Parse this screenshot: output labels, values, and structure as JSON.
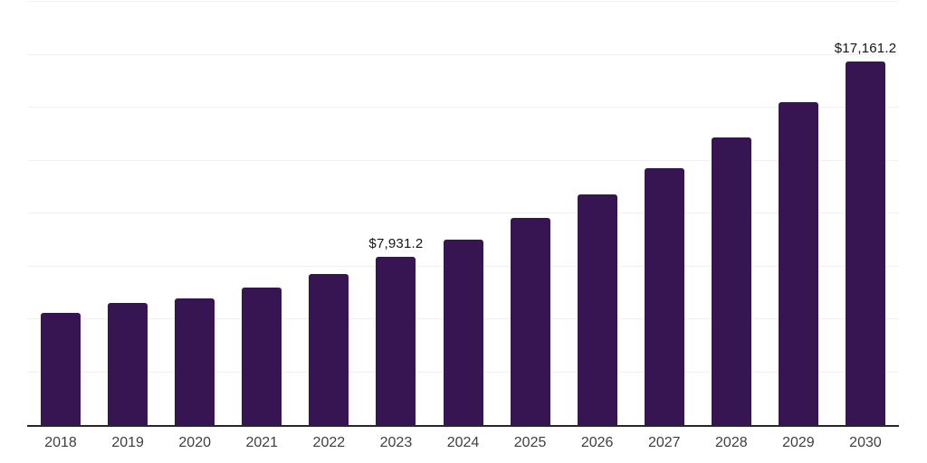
{
  "chart_data": {
    "type": "bar",
    "title": "",
    "xlabel": "",
    "ylabel": "",
    "categories": [
      "2018",
      "2019",
      "2020",
      "2021",
      "2022",
      "2023",
      "2024",
      "2025",
      "2026",
      "2027",
      "2028",
      "2029",
      "2030"
    ],
    "values": [
      5300,
      5750,
      6000,
      6500,
      7150,
      7931.2,
      8750,
      9800,
      10900,
      12150,
      13600,
      15250,
      17161.2
    ],
    "data_labels": [
      "",
      "",
      "",
      "",
      "",
      "$7,931.2",
      "",
      "",
      "",
      "",
      "",
      "",
      "$17,161.2"
    ],
    "ylim": [
      0,
      20000
    ],
    "grid_interval": 2500,
    "grid": "horizontal",
    "legend_position": "none",
    "y_axis_labels_visible": false
  },
  "colors": {
    "bar": "#371553",
    "axis_line": "#26262e",
    "gridline": "#f1f1f4",
    "tick_label": "#3f3f3f",
    "data_label": "#141414",
    "background": "#ffffff"
  }
}
